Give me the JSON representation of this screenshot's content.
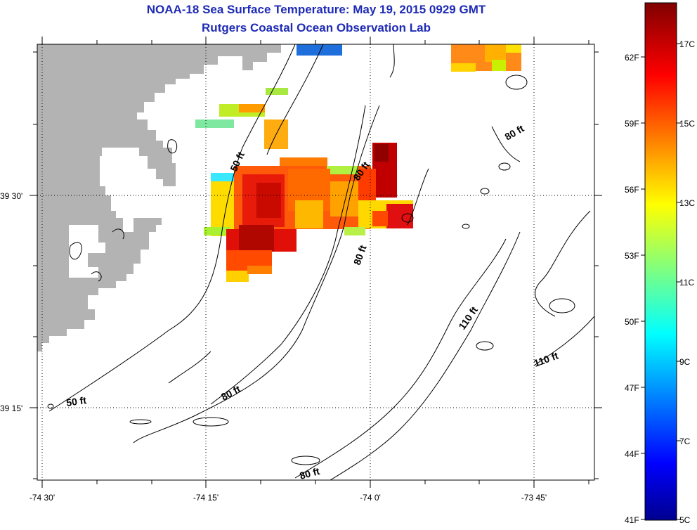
{
  "header": {
    "title": "NOAA-18 Sea Surface Temperature:  May 19, 2015 0929 GMT",
    "subtitle": "Rutgers Coastal Ocean Observation Lab"
  },
  "axes": {
    "x_ticks": [
      "-74 30'",
      "-74 15'",
      "-74 0'",
      "-73 45'"
    ],
    "y_ticks": [
      "39 30'",
      "39 15'"
    ]
  },
  "contour_labels": [
    "50 ft",
    "50 ft",
    "80 ft",
    "80 ft",
    "80 ft",
    "80 ft",
    "110 ft",
    "110 ft",
    "80 ft"
  ],
  "colorbar": {
    "fahrenheit": [
      "62F",
      "59F",
      "56F",
      "53F",
      "50F",
      "47F",
      "44F",
      "41F"
    ],
    "celsius": [
      "17C",
      "15C",
      "13C",
      "11C",
      "9C",
      "7C",
      "5C"
    ],
    "range_c": [
      5,
      18
    ]
  },
  "colors": {
    "title": "#1f2bb5",
    "land": "#b3b3b3",
    "frame": "#000000"
  }
}
